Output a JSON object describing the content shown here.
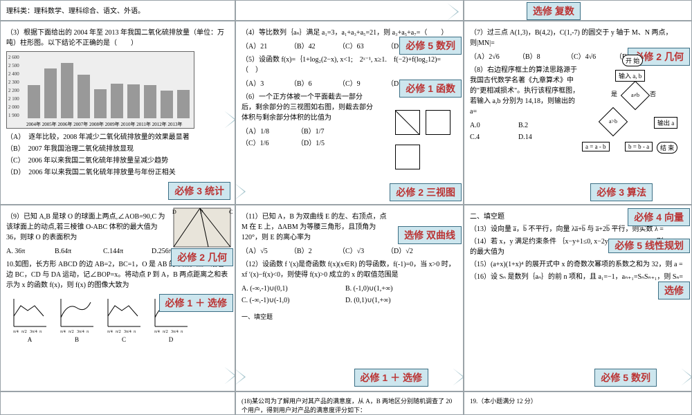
{
  "row0": {
    "c1": "理科类：理科数学、理科综合、语文、外语。",
    "tag": "选修  复数"
  },
  "q3": {
    "text": "（3）根据下面给出的 2004 年至 2013 年我国二氧化硫排放量（单位：万吨）柱形图。以下结论不正确的是（　　）",
    "opts": [
      "（A）　逐年比较，2008 年减少二氧化硫排放量的效果最显著",
      "（B）　2007 年我国治理二氧化硫排放显现",
      "（C）　2006 年以来我国二氧化硫年排放量呈减少趋势",
      "（D）　2006 年以来我国二氧化硫年排放量与年份正相关"
    ],
    "years": [
      "2004年",
      "2005年",
      "2006年",
      "2007年",
      "2008年",
      "2009年",
      "2010年",
      "2011年",
      "2012年",
      "2013年"
    ],
    "ylabels": [
      "1 900",
      "2 000",
      "2 100",
      "2 200",
      "2 300",
      "2 400",
      "2 500",
      "2 600"
    ],
    "heights": [
      48,
      72,
      80,
      63,
      42,
      50,
      49,
      48,
      40,
      41
    ],
    "tag": "必修 3  统计"
  },
  "q456": {
    "q4": "（4）等比数列｛aₙ｝满足 a₁=3，a₁+a₃+a₅=21，则 a₃+a₅+a₇=（　　）",
    "q4o": [
      "（A）21",
      "（B）42",
      "（C）63",
      "（D）84"
    ],
    "q5": "（5）设函数 f(x)=｛1+log₂(2−x), x<1;　2ˣ⁻¹, x≥1.　f(−2)+f(log₂12)=（　）",
    "q5o": [
      "（A）3",
      "（B）6",
      "（C）9",
      "（D）12"
    ],
    "q6": "（6）一个正方体被一个平面截去一部分后，剩余部分的三视图如右图，则截去部分体积与剩余部分体积的比值为",
    "q6o": [
      "（A）1/8",
      "（B）1/7",
      "（C）1/6",
      "（D）1/5"
    ],
    "tag5": "必修 5  数列",
    "tag1": "必修 1  函数",
    "tag2": "必修 2  三视图"
  },
  "q78": {
    "q7": "（7）过三点 A(1,3)，B(4,2)，C(1,-7) 的圆交于 y 轴于 M、N 两点，则|MN|=",
    "q7o": [
      "（A）2√6",
      "（B）8",
      "（C）4√6",
      "（D）10"
    ],
    "q8": "（8）右边程序框土的算法思路源于我国古代数学名著《九章算术》中的\"更相减损术\"。执行该程序框图，若输入 a,b 分别为 14,18，则输出的 a=",
    "q8o": [
      "A.0",
      "B.2",
      "C.4",
      "D.14"
    ],
    "tag2": "必修 2  几何",
    "tag3": "必修 3  算法",
    "flow": {
      "start": "开 始",
      "in": "输入 a, b",
      "c1": "a≠b",
      "c2": "a>b",
      "l": "a = a - b",
      "r": "b = b - a",
      "out": "输出 a",
      "end": "结 束",
      "y": "是",
      "n": "否"
    }
  },
  "q910": {
    "q9": "（9）已知 A,B 是球 O 的球面上两点,∠AOB=90,C 为该球面上的动点,若三棱锥 O-ABC 体积的最大值为 36，则球 O 的表面积为",
    "q9o": [
      "A. 36π",
      "B.64π",
      "C.144π",
      "D.256π"
    ],
    "q10": "10.如图，长方形 ABCD 的边 AB=2，BC=1，O 是 AB 的中点，点 P 沿着边 BC，CD 与 DA 运动，记∠BOP=x。将动点 P 到 A，B 两点距离之和表示为 x 的函数 f(x)，则 f(x) 的图像大致为",
    "mlabels": [
      "A",
      "B",
      "C",
      "D"
    ],
    "tag1": "必修 2  几何",
    "tag2": "必修 1 ＋ 选修"
  },
  "q1112": {
    "q11": "（11）已知 A，B 为双曲线 E 的左、右顶点，点 M 在 E 上，ΔABM 为等腰三角形，且顶角为 120°，则 E 的离心率为",
    "q11o": [
      "（A）√5",
      "（B）2",
      "（C）√3",
      "（D）√2"
    ],
    "q12": "（12）设函数 f ′(x)是奇函数 f(x)(x∈R) 的导函数，f(-1)=0，当 x>0 时，xf ′(x)−f(x)<0，则使得 f(x)>0 成立的 x 的取值范围是",
    "q12o": [
      "A.  (-∞,-1)∪(0,1)",
      "B.  (-1,0)∪(1,+∞)",
      "C.  (-∞,-1)∪(-1,0)",
      "D.  (0,1)∪(1,+∞)"
    ],
    "hint": "一、填空题",
    "tagS": "选修  双曲线",
    "tagX": "必修 1 ＋ 选修"
  },
  "q1316": {
    "hdr": "二、填空题",
    "q13": "（13）设向量 a̅，b̅ 不平行，向量 λa̅+b̅ 与 a̅+2b̅ 平行，则实数 λ =",
    "q14": "（14）若 x，y 满足约束条件 ｛x−y+1≤0, x−2y≤0, x+2y−2≤0.　则 z=x+y 的最大值为",
    "q15": "（15）(a+x)(1+x)⁴ 的展开式中 x 的奇数次幂项的系数之和为 32，则 a =",
    "q16": "（16）设 Sₙ 是数列｛aₙ｝的前 n 项和，且 a₁=−1，aₙ₊₁=SₙSₙ₊₁，则 Sₙ=",
    "tag4": "必修 4  向量",
    "tag5a": "必修 5  线性规划",
    "tag5b": "选修",
    "tag5c": "必修 5  数列"
  },
  "row4": {
    "c2": "(18)某公司为了解用户对其产品的满意度，从 A，B 两地区分别随机调查了 20 个用户，得到用户对产品的满意度评分如下：",
    "c3": "19.（本小题满分 12 分）"
  }
}
